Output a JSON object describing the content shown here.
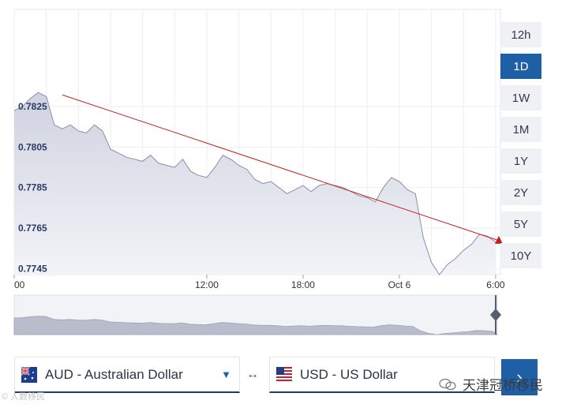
{
  "chart_data": {
    "type": "area",
    "title": "",
    "xlabel": "",
    "ylabel": "",
    "y_ticks": [
      0.7825,
      0.7805,
      0.7785,
      0.7765,
      0.7745
    ],
    "ylim": [
      0.7742,
      0.7873
    ],
    "x_ticks": [
      {
        "label": "00",
        "h": 0
      },
      {
        "label": "12:00",
        "h": 12
      },
      {
        "label": "18:00",
        "h": 18
      },
      {
        "label": "Oct 6",
        "h": 24
      },
      {
        "label": "6:00",
        "h": 30
      }
    ],
    "xlim_hours": [
      0,
      30.3
    ],
    "grid": true,
    "series": [
      {
        "x_hours": [
          0,
          0.5,
          1,
          1.5,
          2,
          2.5,
          3,
          3.5,
          4,
          4.5,
          5,
          5.5,
          6,
          6.5,
          7,
          7.5,
          8,
          8.5,
          9,
          9.5,
          10,
          10.5,
          11,
          11.5,
          12,
          12.5,
          13,
          13.5,
          14,
          14.5,
          15,
          15.5,
          16,
          16.5,
          17,
          17.5,
          18,
          18.5,
          19,
          19.5,
          20,
          20.5,
          21,
          21.5,
          22,
          22.5,
          23,
          23.5,
          24,
          24.5,
          25,
          25.5,
          26,
          26.5,
          27,
          27.5,
          28,
          28.5,
          29,
          29.5,
          30
        ],
        "values": [
          0.7823,
          0.7825,
          0.7829,
          0.7832,
          0.783,
          0.7816,
          0.7814,
          0.7816,
          0.7813,
          0.7812,
          0.7816,
          0.7813,
          0.7804,
          0.7802,
          0.78,
          0.7799,
          0.7798,
          0.7801,
          0.7797,
          0.7796,
          0.7795,
          0.7799,
          0.7793,
          0.7791,
          0.779,
          0.7795,
          0.7801,
          0.7799,
          0.7796,
          0.7794,
          0.7789,
          0.7787,
          0.7788,
          0.7785,
          0.7782,
          0.7784,
          0.7786,
          0.7783,
          0.7786,
          0.7787,
          0.7786,
          0.7785,
          0.7783,
          0.7781,
          0.778,
          0.7778,
          0.7785,
          0.779,
          0.7788,
          0.7784,
          0.7782,
          0.776,
          0.7748,
          0.7742,
          0.7747,
          0.775,
          0.7754,
          0.7757,
          0.7762,
          0.7761,
          0.7758
        ]
      }
    ],
    "trendline": {
      "start": {
        "h": 3,
        "v": 0.78308
      },
      "end": {
        "h": 30.2,
        "v": 0.77588
      }
    }
  },
  "range_buttons": [
    "12h",
    "1D",
    "1W",
    "1M",
    "1Y",
    "2Y",
    "5Y",
    "10Y"
  ],
  "active_range": "1D",
  "from_currency": "AUD - Australian Dollar",
  "to_currency": "USD - US Dollar",
  "swap_symbol": "↔",
  "watermark_left": "© 人数移民",
  "watermark_right": "天津冠桥移民",
  "colors": {
    "accent": "#1e5fa5",
    "fill": "#d9dbe7",
    "line": "#8a8ea3",
    "trend": "#c0201e"
  }
}
